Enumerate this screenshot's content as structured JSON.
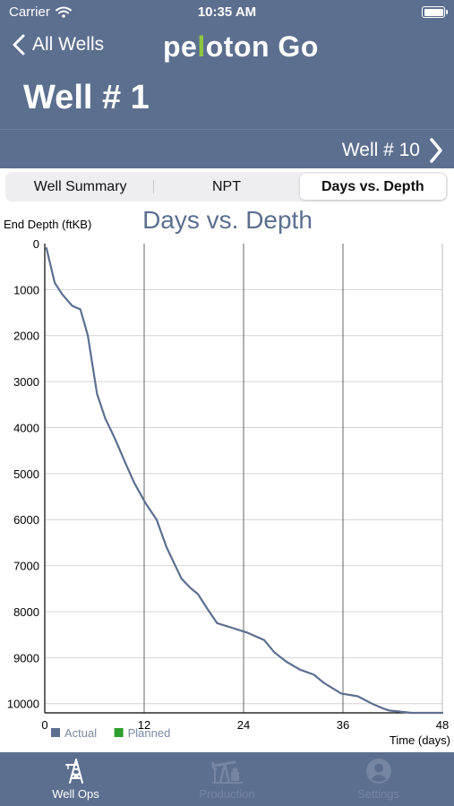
{
  "status_bar": {
    "carrier": "Carrier",
    "time": "10:35 AM"
  },
  "nav": {
    "back_label": "All Wells",
    "logo_part1": "pe",
    "logo_accent": "l",
    "logo_part2": "oton Go",
    "title": "Well # 1",
    "next_label": "Well # 10"
  },
  "tabs_segment": [
    {
      "label": "Well Summary",
      "active": false
    },
    {
      "label": "NPT",
      "active": false
    },
    {
      "label": "Days vs. Depth",
      "active": true
    }
  ],
  "chart_data": {
    "type": "line",
    "title": "Days vs. Depth",
    "ylabel": "End Depth (ftKB)",
    "xlabel": "Time (days)",
    "xlim": [
      0,
      48
    ],
    "ylim": [
      0,
      10200
    ],
    "y_inverted": true,
    "x_ticks": [
      0,
      12,
      24,
      36,
      48
    ],
    "y_ticks": [
      0,
      1000,
      2000,
      3000,
      4000,
      5000,
      6000,
      7000,
      8000,
      9000,
      10000
    ],
    "grid": true,
    "legend_position": "bottom-left",
    "legend": [
      {
        "label": "Actual",
        "color": "#5c6f8f"
      },
      {
        "label": "Planned",
        "color": "#2ca02c"
      }
    ],
    "series": [
      {
        "name": "Actual",
        "color": "#5c6f8f",
        "x": [
          0.2,
          1.2,
          2.1,
          3.3,
          4.3,
          5.2,
          6.3,
          7.3,
          8.5,
          9.8,
          10.8,
          12.2,
          13.5,
          14.7,
          16.5,
          17.5,
          18.5,
          19.6,
          20.8,
          22.6,
          24.5,
          26.5,
          27.7,
          29.1,
          30.8,
          32.5,
          33.7,
          35.8,
          37.8,
          39.5,
          40.8,
          41.6,
          44.3,
          45.7,
          48
        ],
        "y": [
          100,
          850,
          1100,
          1350,
          1430,
          2000,
          3260,
          3800,
          4250,
          4800,
          5200,
          5650,
          6000,
          6600,
          7280,
          7470,
          7620,
          7930,
          8250,
          8350,
          8460,
          8620,
          8880,
          9080,
          9260,
          9370,
          9550,
          9780,
          9840,
          10000,
          10100,
          10150,
          10200,
          10200,
          10200
        ]
      }
    ]
  },
  "bottom_tabs": [
    {
      "label": "Well Ops",
      "icon": "derrick-icon",
      "active": true
    },
    {
      "label": "Production",
      "icon": "pumpjack-icon",
      "active": false
    },
    {
      "label": "Settings",
      "icon": "person-icon",
      "active": false
    }
  ],
  "colors": {
    "nav_bg": "#5c6f8f",
    "logo_accent": "#8ec63f",
    "line": "#5c6f8f"
  }
}
